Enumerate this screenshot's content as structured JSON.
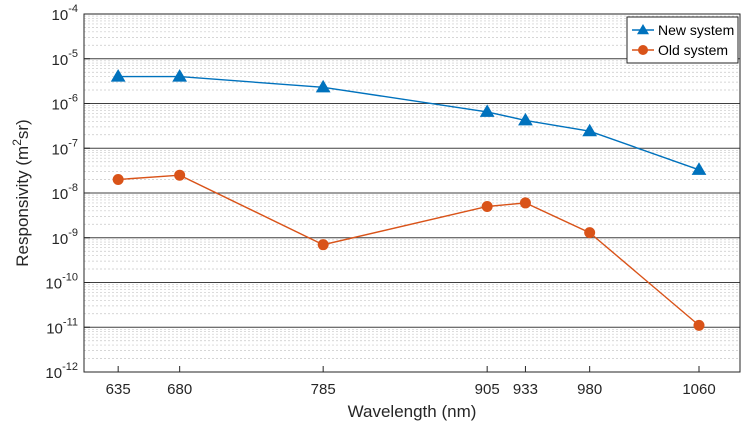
{
  "chart_data": {
    "type": "line",
    "x": [
      635,
      680,
      785,
      905,
      933,
      980,
      1060
    ],
    "x_ticks": [
      "635",
      "680",
      "785",
      "905",
      "933",
      "980",
      "1060"
    ],
    "xlim": [
      610,
      1090
    ],
    "xlabel": "Wavelength (nm)",
    "ylabel": {
      "base": "Responsivity (m",
      "sup": "2",
      "tail": "sr)"
    },
    "yscale": "log",
    "ylim": [
      1e-12,
      0.0001
    ],
    "y_ticks": [
      {
        "base": "10",
        "exp": "-4"
      },
      {
        "base": "10",
        "exp": "-5"
      },
      {
        "base": "10",
        "exp": "-6"
      },
      {
        "base": "10",
        "exp": "-7"
      },
      {
        "base": "10",
        "exp": "-8"
      },
      {
        "base": "10",
        "exp": "-9"
      },
      {
        "base": "10",
        "exp": "-10"
      },
      {
        "base": "10",
        "exp": "-11"
      },
      {
        "base": "10",
        "exp": "-12"
      }
    ],
    "grid": true,
    "legend_position": "top-right",
    "series": [
      {
        "name": "New system",
        "marker": "triangle",
        "color": "#0072BD",
        "values": [
          4e-06,
          4e-06,
          2.3e-06,
          6.5e-07,
          4.2e-07,
          2.4e-07,
          3.3e-08
        ]
      },
      {
        "name": "Old system",
        "marker": "circle",
        "color": "#D95319",
        "values": [
          2e-08,
          2.5e-08,
          7e-10,
          5e-09,
          6e-09,
          1.3e-09,
          1.1e-11
        ]
      }
    ]
  }
}
